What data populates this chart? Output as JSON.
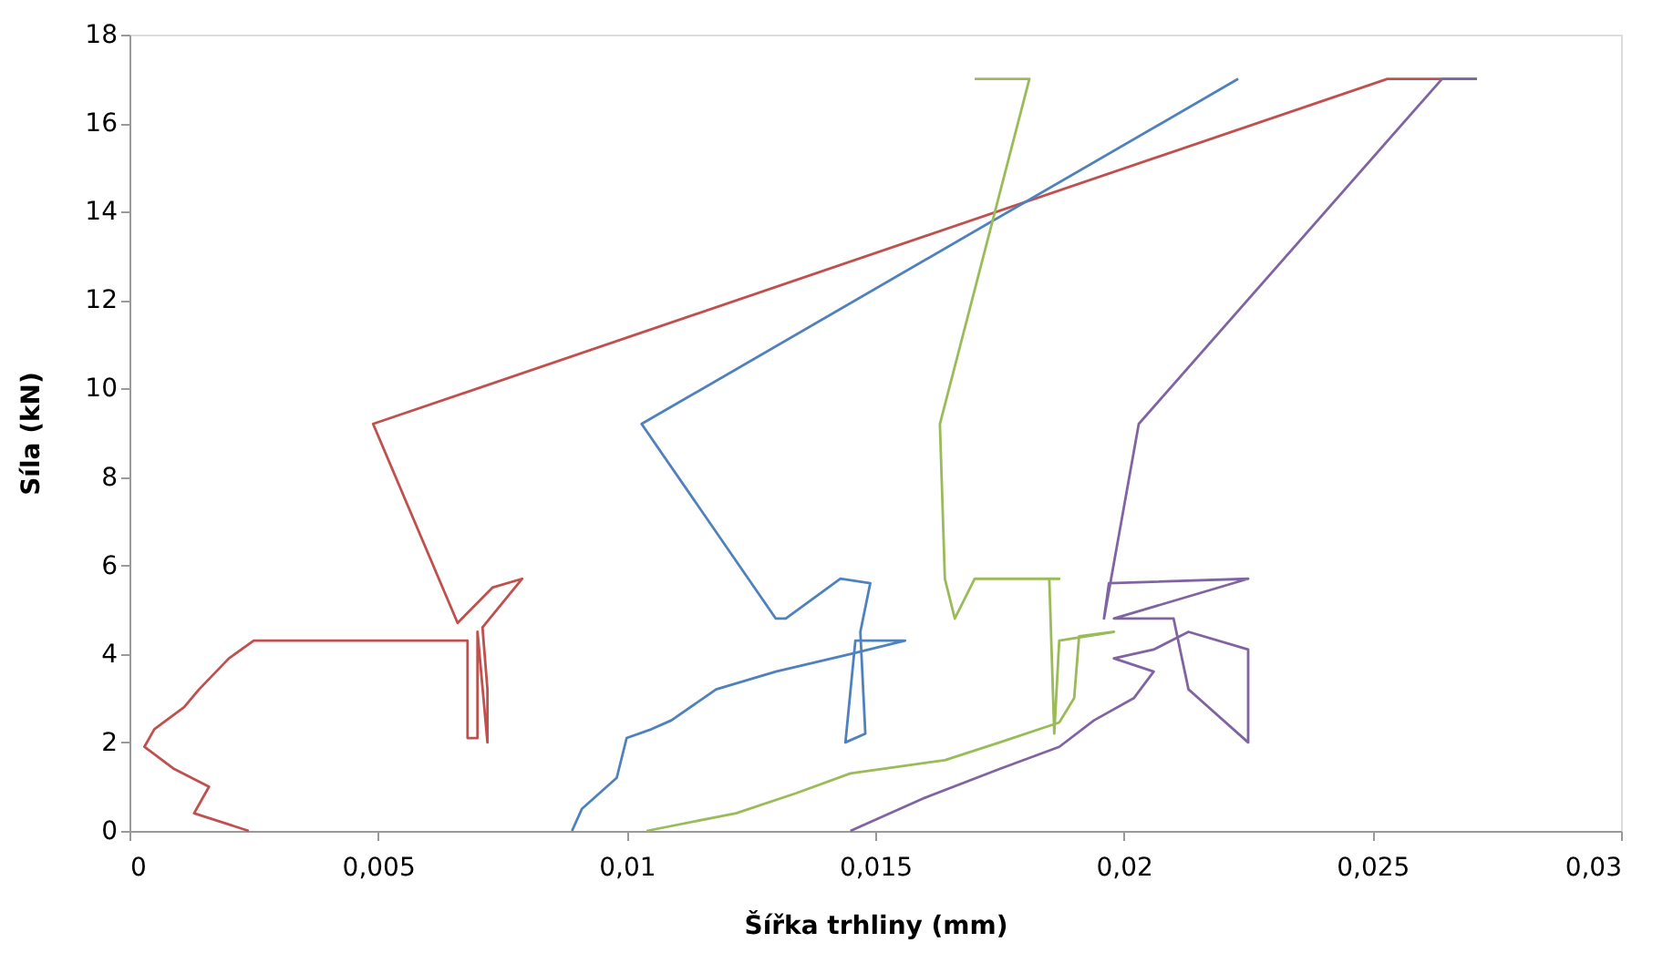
{
  "chart_data": {
    "type": "line",
    "xlabel": "Šířka trhliny (mm)",
    "ylabel": "Síla (kN)",
    "xlim": [
      0,
      0.03
    ],
    "ylim": [
      0,
      18
    ],
    "xticks": [
      0,
      {
        "value": 0.005,
        "label": "0,005"
      },
      {
        "value": 0.01,
        "label": "0,01"
      },
      {
        "value": 0.015,
        "label": "0,015"
      },
      {
        "value": 0.02,
        "label": "0,02"
      },
      {
        "value": 0.025,
        "label": "0,025"
      },
      {
        "value": 0.03,
        "label": "0,03"
      }
    ],
    "yticks": [
      0,
      2,
      4,
      6,
      8,
      10,
      12,
      14,
      16,
      18
    ],
    "grid": false,
    "legend": false,
    "series": [
      {
        "color": "#c0504d",
        "x": [
          0.0024,
          0.0013,
          0.0016,
          0.0009,
          0.0003,
          0.0005,
          0.0011,
          0.0014,
          0.002,
          0.0025,
          0.0045,
          0.006,
          0.0068,
          0.0068,
          0.007,
          0.007,
          0.0072,
          0.0072,
          0.0071,
          0.0079,
          0.0073,
          0.0066,
          0.0049,
          0.0253,
          0.0271
        ],
        "values": [
          0,
          0.4,
          1.0,
          1.4,
          1.9,
          2.3,
          2.8,
          3.2,
          3.9,
          4.3,
          4.3,
          4.3,
          4.3,
          2.1,
          2.1,
          4.5,
          2.0,
          3.2,
          4.6,
          5.7,
          5.5,
          4.7,
          9.2,
          17,
          17
        ]
      },
      {
        "color": "#4f81bd",
        "x": [
          0.0089,
          0.0091,
          0.0098,
          0.01,
          0.0105,
          0.0109,
          0.0118,
          0.013,
          0.0145,
          0.0156,
          0.0146,
          0.0144,
          0.0148,
          0.0147,
          0.0149,
          0.0143,
          0.0132,
          0.013,
          0.0103,
          0.0223
        ],
        "values": [
          0,
          0.5,
          1.2,
          2.1,
          2.3,
          2.5,
          3.2,
          3.6,
          4.0,
          4.3,
          4.3,
          2.0,
          2.2,
          4.5,
          5.6,
          5.7,
          4.8,
          4.8,
          9.2,
          17
        ]
      },
      {
        "color": "#9bbb59",
        "x": [
          0.0104,
          0.0122,
          0.0134,
          0.0145,
          0.0164,
          0.0175,
          0.0187,
          0.019,
          0.0191,
          0.0198,
          0.0187,
          0.0186,
          0.0185,
          0.0187,
          0.017,
          0.0166,
          0.0164,
          0.0163,
          0.0181,
          0.017
        ],
        "values": [
          0,
          0.4,
          0.85,
          1.3,
          1.6,
          2.0,
          2.45,
          3.0,
          4.4,
          4.5,
          4.3,
          2.2,
          5.7,
          5.7,
          5.7,
          4.8,
          5.7,
          9.2,
          17,
          17
        ]
      },
      {
        "color": "#8064a2",
        "x": [
          0.0145,
          0.016,
          0.0175,
          0.0187,
          0.0194,
          0.0202,
          0.0206,
          0.0198,
          0.0206,
          0.0213,
          0.0225,
          0.0225,
          0.0213,
          0.021,
          0.0198,
          0.0225,
          0.0197,
          0.0196,
          0.0203,
          0.0264,
          0.0271
        ],
        "values": [
          0,
          0.75,
          1.4,
          1.9,
          2.5,
          3.0,
          3.6,
          3.9,
          4.1,
          4.5,
          4.1,
          2.0,
          3.2,
          4.8,
          4.8,
          5.7,
          5.6,
          4.8,
          9.2,
          17,
          17
        ]
      }
    ]
  }
}
